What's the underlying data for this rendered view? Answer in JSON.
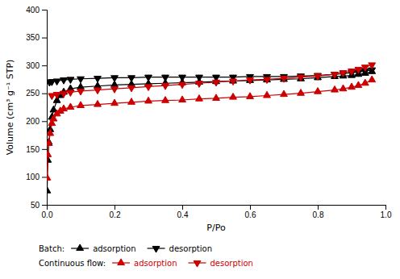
{
  "chart_data": {
    "type": "line",
    "xlabel": "P/Po",
    "ylabel": "Volume (cm³ g⁻¹ STP)",
    "xlim": [
      0,
      1.0
    ],
    "ylim": [
      50,
      400
    ],
    "xticks": [
      {
        "value": 0.0,
        "label": "0.0"
      },
      0.2,
      0.4,
      0.6,
      0.8,
      {
        "value": 1.0,
        "label": "1.0"
      }
    ],
    "yticks": [
      50,
      100,
      150,
      200,
      250,
      300,
      350,
      400
    ],
    "grid": false,
    "legend": "bottom",
    "series": [
      {
        "name": "adsorption",
        "group": "Batch:",
        "color": "#000000",
        "marker": "triangle-up",
        "x": [
          0.001,
          0.003,
          0.006,
          0.01,
          0.015,
          0.02,
          0.03,
          0.04,
          0.05,
          0.07,
          0.1,
          0.15,
          0.2,
          0.25,
          0.3,
          0.35,
          0.4,
          0.45,
          0.5,
          0.55,
          0.6,
          0.65,
          0.7,
          0.75,
          0.8,
          0.85,
          0.875,
          0.9,
          0.92,
          0.94,
          0.96
        ],
        "values": [
          75,
          130,
          162,
          185,
          207,
          220,
          237,
          246,
          252,
          258,
          261,
          263,
          265,
          266,
          267,
          268,
          269,
          270,
          271,
          272,
          273,
          274,
          275,
          276,
          278,
          280,
          281,
          282,
          284,
          286,
          289
        ]
      },
      {
        "name": "desorption",
        "group": "Batch:",
        "color": "#000000",
        "marker": "triangle-down",
        "x": [
          0.96,
          0.94,
          0.92,
          0.9,
          0.875,
          0.85,
          0.8,
          0.75,
          0.7,
          0.65,
          0.6,
          0.55,
          0.5,
          0.45,
          0.4,
          0.35,
          0.3,
          0.25,
          0.2,
          0.15,
          0.1,
          0.07,
          0.05,
          0.03,
          0.015,
          0.008
        ],
        "values": [
          292,
          290,
          288,
          287,
          285,
          284,
          282,
          281,
          280,
          280,
          280,
          279,
          279,
          279,
          279,
          279,
          279,
          278,
          278,
          277,
          276,
          275,
          274,
          272,
          271,
          270
        ]
      },
      {
        "name": "adsorption",
        "group": "Continuous flow:",
        "color": "#cc0000",
        "marker": "triangle-up",
        "x": [
          0.001,
          0.003,
          0.006,
          0.01,
          0.015,
          0.02,
          0.03,
          0.04,
          0.05,
          0.07,
          0.1,
          0.15,
          0.2,
          0.25,
          0.3,
          0.35,
          0.4,
          0.45,
          0.5,
          0.55,
          0.6,
          0.65,
          0.7,
          0.75,
          0.8,
          0.85,
          0.875,
          0.9,
          0.92,
          0.94,
          0.96
        ],
        "values": [
          98,
          140,
          160,
          178,
          196,
          204,
          213,
          218,
          222,
          225,
          228,
          230,
          232,
          234,
          236,
          237,
          238,
          240,
          241,
          243,
          244,
          246,
          248,
          250,
          253,
          256,
          258,
          261,
          264,
          268,
          274
        ]
      },
      {
        "name": "desorption",
        "group": "Continuous flow:",
        "color": "#cc0000",
        "marker": "triangle-down",
        "x": [
          0.96,
          0.94,
          0.92,
          0.9,
          0.875,
          0.85,
          0.8,
          0.75,
          0.7,
          0.65,
          0.6,
          0.55,
          0.5,
          0.45,
          0.4,
          0.35,
          0.3,
          0.25,
          0.2,
          0.15,
          0.1,
          0.07,
          0.05,
          0.03,
          0.015
        ],
        "values": [
          301,
          297,
          293,
          290,
          287,
          284,
          281,
          279,
          277,
          275,
          274,
          272,
          270,
          268,
          266,
          264,
          262,
          260,
          258,
          256,
          254,
          252,
          250,
          248,
          246
        ]
      }
    ]
  }
}
